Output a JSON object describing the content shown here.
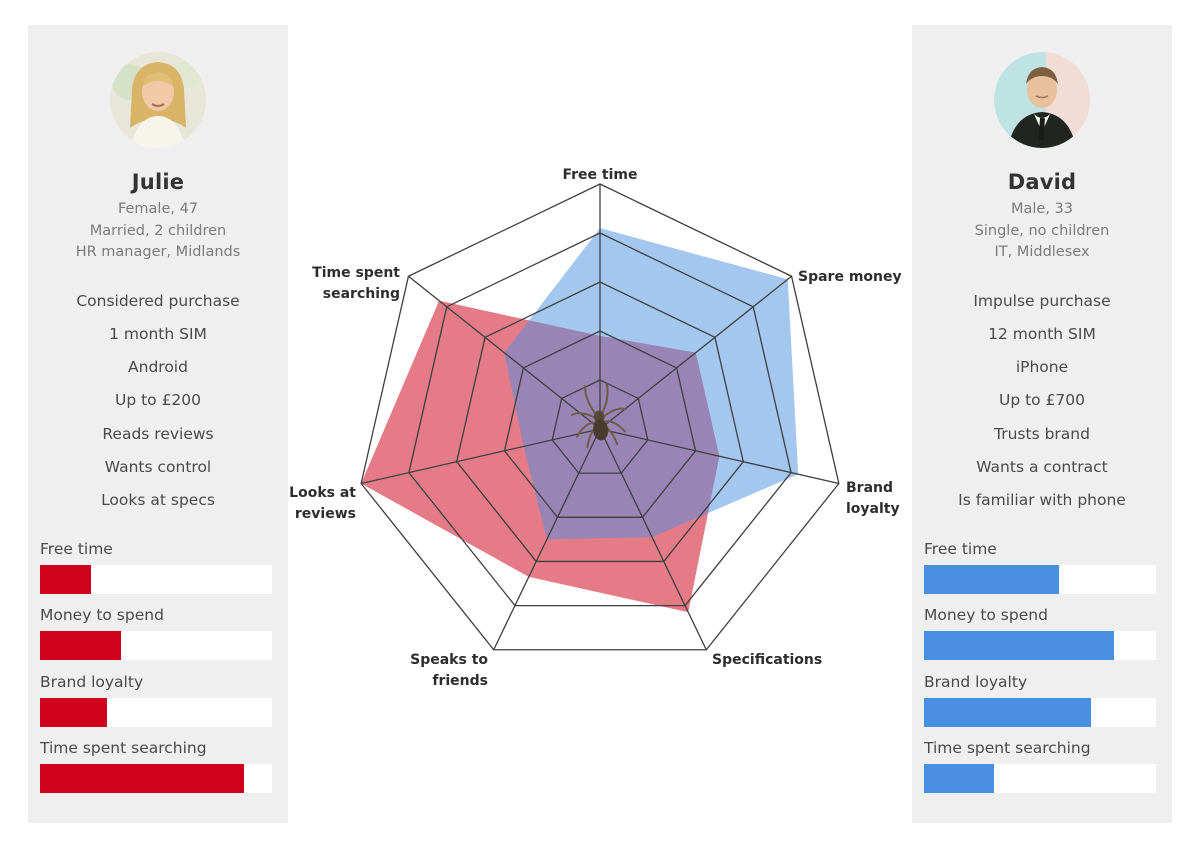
{
  "colors": {
    "card_background": "#efefef",
    "julie_accent": "#d0021b",
    "david_accent": "#4a90e2",
    "grid": "#3f3f3f",
    "label_text": "#2e2e2e",
    "body_text": "#4a4a4a",
    "muted_text": "#7b7b7b"
  },
  "personas": {
    "julie": {
      "name": "Julie",
      "details": [
        "Female, 47",
        "Married, 2 children",
        "HR manager, Midlands"
      ],
      "attributes": [
        "Considered purchase",
        "1 month SIM",
        "Android",
        "Up to £200",
        "Reads reviews",
        "Wants control",
        "Looks at specs"
      ],
      "accent_color": "#d0021b",
      "avatar": "blonde-woman-photo",
      "bars": [
        {
          "label": "Free time",
          "percent": 22
        },
        {
          "label": "Money to spend",
          "percent": 35
        },
        {
          "label": "Brand loyalty",
          "percent": 29
        },
        {
          "label": "Time spent searching",
          "percent": 88
        }
      ]
    },
    "david": {
      "name": "David",
      "details": [
        "Male, 33",
        "Single, no children",
        "IT, Middlesex"
      ],
      "attributes": [
        "Impulse purchase",
        "12 month SIM",
        "iPhone",
        "Up to £700",
        "Trusts brand",
        "Wants a contract",
        "Is familiar with phone"
      ],
      "accent_color": "#4a90e2",
      "avatar": "man-in-suit-photo",
      "bars": [
        {
          "label": "Free time",
          "percent": 58
        },
        {
          "label": "Money to spend",
          "percent": 82
        },
        {
          "label": "Brand loyalty",
          "percent": 72
        },
        {
          "label": "Time spent searching",
          "percent": 30
        }
      ]
    }
  },
  "chart_data": {
    "type": "radar",
    "title": "",
    "categories": [
      "Free time",
      "Spare money",
      "Brand loyalty",
      "Specifications",
      "Speaks to friends",
      "Looks at reviews",
      "Time spent searching"
    ],
    "axis_label_lines": [
      [
        "Free time"
      ],
      [
        "Spare money"
      ],
      [
        "Brand",
        "loyalty"
      ],
      [
        "Specifications"
      ],
      [
        "Speaks to",
        "friends"
      ],
      [
        "Looks at",
        "reviews"
      ],
      [
        "Time spent",
        "searching"
      ]
    ],
    "scale_max": 10,
    "rings": 5,
    "legend": "none",
    "center_icon": "spider",
    "series": [
      {
        "name": "Julie",
        "color": "#d0021b",
        "fill_opacity": 0.52,
        "values": [
          3.8,
          5.0,
          5.0,
          8.3,
          6.7,
          10.0,
          8.4
        ]
      },
      {
        "name": "David",
        "color": "#4a90e2",
        "fill_opacity": 0.5,
        "values": [
          8.2,
          9.8,
          8.3,
          4.9,
          5.0,
          3.2,
          5.0
        ]
      }
    ]
  }
}
